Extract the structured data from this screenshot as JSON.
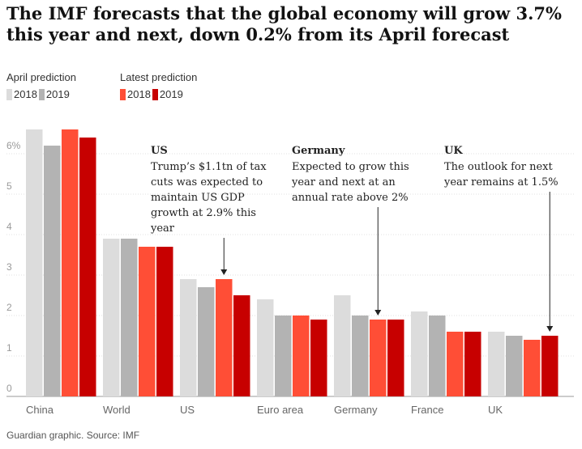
{
  "title": "The IMF forecasts that the global economy will grow 3.7% this year and next, down 0.2% from its April forecast",
  "source": "Guardian graphic. Source: IMF",
  "legend": {
    "groups": [
      {
        "title": "April prediction",
        "items": [
          {
            "label": "2018",
            "color": "#dcdcdc"
          },
          {
            "label": "2019",
            "color": "#b3b3b3"
          }
        ]
      },
      {
        "title": "Latest prediction",
        "items": [
          {
            "label": "2018",
            "color": "#ff4e36"
          },
          {
            "label": "2019",
            "color": "#c70000"
          }
        ]
      }
    ]
  },
  "chart_data": {
    "type": "bar",
    "title": "The IMF forecasts that the global economy will grow 3.7% this year and next, down 0.2% from its April forecast",
    "xlabel": "",
    "ylabel": "",
    "ylim": [
      0,
      7
    ],
    "yticks": [
      "0",
      "1",
      "2",
      "3",
      "4",
      "5",
      "6%"
    ],
    "ytick_values": [
      0,
      1,
      2,
      3,
      4,
      5,
      6
    ],
    "grid": true,
    "legend_position": "top-left",
    "categories": [
      "China",
      "World",
      "US",
      "Euro area",
      "Germany",
      "France",
      "UK"
    ],
    "series": [
      {
        "name": "April prediction 2018",
        "color": "#dcdcdc",
        "values": [
          6.6,
          3.9,
          2.9,
          2.4,
          2.5,
          2.1,
          1.6
        ]
      },
      {
        "name": "April prediction 2019",
        "color": "#b3b3b3",
        "values": [
          6.2,
          3.9,
          2.7,
          2.0,
          2.0,
          2.0,
          1.5
        ]
      },
      {
        "name": "Latest prediction 2018",
        "color": "#ff4e36",
        "values": [
          6.6,
          3.7,
          2.9,
          2.0,
          1.9,
          1.6,
          1.4
        ]
      },
      {
        "name": "Latest prediction 2019",
        "color": "#c70000",
        "values": [
          6.4,
          3.7,
          2.5,
          1.9,
          1.9,
          1.6,
          1.5
        ]
      }
    ],
    "annotations": [
      {
        "name": "us",
        "title": "US",
        "lines": [
          "Trump’s $1.1tn of tax",
          "cuts was expected to",
          "maintain US GDP",
          "growth at 2.9% this",
          "year"
        ],
        "category": "US",
        "series": 2
      },
      {
        "name": "germany",
        "title": "Germany",
        "lines": [
          "Expected to grow this",
          "year and next at an",
          "annual rate above 2%"
        ],
        "category": "Germany",
        "series": 2
      },
      {
        "name": "uk",
        "title": "UK",
        "lines": [
          "The outlook for next",
          "year remains at 1.5%"
        ],
        "category": "UK",
        "series": 3
      }
    ]
  }
}
